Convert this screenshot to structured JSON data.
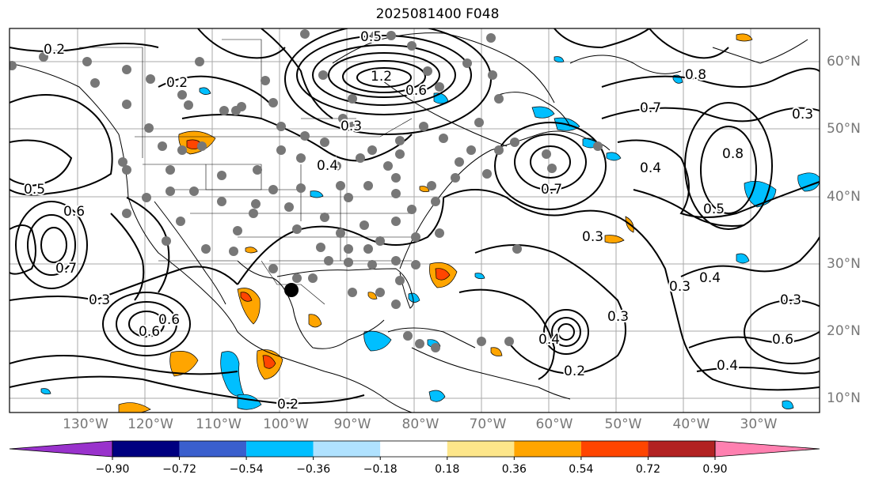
{
  "title": "2025081400 F048",
  "lon_labels": [
    "130°W",
    "120°W",
    "110°W",
    "100°W",
    "90°W",
    "80°W",
    "70°W",
    "60°W",
    "50°W",
    "40°W",
    "30°W"
  ],
  "lat_labels": [
    "60°N",
    "50°N",
    "40°N",
    "30°N",
    "20°N",
    "10°N"
  ],
  "colorbar": {
    "ticks": [
      "−0.90",
      "−0.72",
      "−0.54",
      "−0.36",
      "−0.18",
      "0.18",
      "0.36",
      "0.54",
      "0.72",
      "0.90"
    ],
    "colors": [
      "#9932cc",
      "#000080",
      "#3a5fcd",
      "#00bfff",
      "#b0e2ff",
      "#ffffff",
      "#fde68a",
      "#ffa500",
      "#ff4500",
      "#b22222",
      "#ff80b0"
    ]
  },
  "contour_labels": [
    {
      "text": "0.2"
    },
    {
      "text": "0.2"
    },
    {
      "text": "0.3"
    },
    {
      "text": "0.4"
    },
    {
      "text": "0.5"
    },
    {
      "text": "0.6"
    },
    {
      "text": "0.7"
    },
    {
      "text": "0.3"
    },
    {
      "text": "1.2"
    },
    {
      "text": "0.6"
    },
    {
      "text": "0.5"
    },
    {
      "text": "0.3"
    },
    {
      "text": "0.4"
    },
    {
      "text": "0.7"
    },
    {
      "text": "0.3"
    },
    {
      "text": "0.3"
    },
    {
      "text": "0.4"
    },
    {
      "text": "0.8"
    },
    {
      "text": "0.5"
    },
    {
      "text": "0.8"
    },
    {
      "text": "0.7"
    },
    {
      "text": "0.6"
    },
    {
      "text": "0.4"
    },
    {
      "text": "0.3"
    },
    {
      "text": "0.6"
    },
    {
      "text": "0.4"
    },
    {
      "text": "0.2"
    },
    {
      "text": "0.2"
    },
    {
      "text": "0.3"
    },
    {
      "text": "0.6"
    }
  ]
}
